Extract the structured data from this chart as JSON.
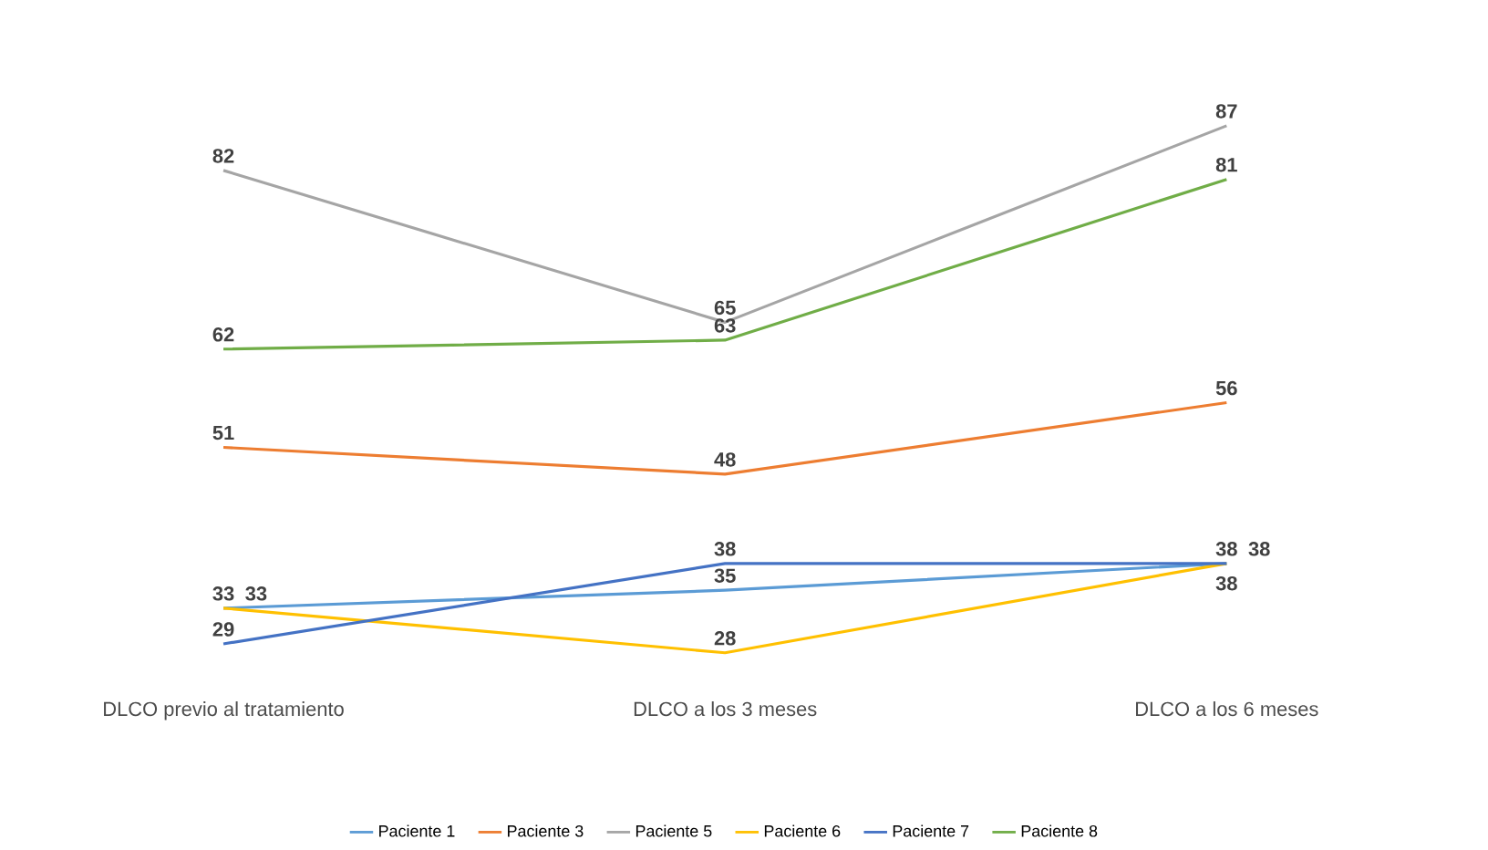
{
  "chart_data": {
    "type": "line",
    "categories": [
      "DLCO previo al tratamiento",
      "DLCO a los 3 meses",
      "DLCO a los 6 meses"
    ],
    "series": [
      {
        "name": "Paciente 1",
        "color": "#5b9bd5",
        "values": [
          33,
          35,
          38
        ]
      },
      {
        "name": "Paciente 3",
        "color": "#ed7d31",
        "values": [
          51,
          48,
          56
        ]
      },
      {
        "name": "Paciente 5",
        "color": "#a5a5a5",
        "values": [
          82,
          65,
          87
        ]
      },
      {
        "name": "Paciente 6",
        "color": "#ffc000",
        "values": [
          33,
          28,
          38
        ]
      },
      {
        "name": "Paciente 7",
        "color": "#4472c4",
        "values": [
          29,
          38,
          38
        ]
      },
      {
        "name": "Paciente 8",
        "color": "#70ad47",
        "values": [
          62,
          63,
          81
        ]
      }
    ],
    "data_labels": true,
    "legend": "bottom"
  }
}
